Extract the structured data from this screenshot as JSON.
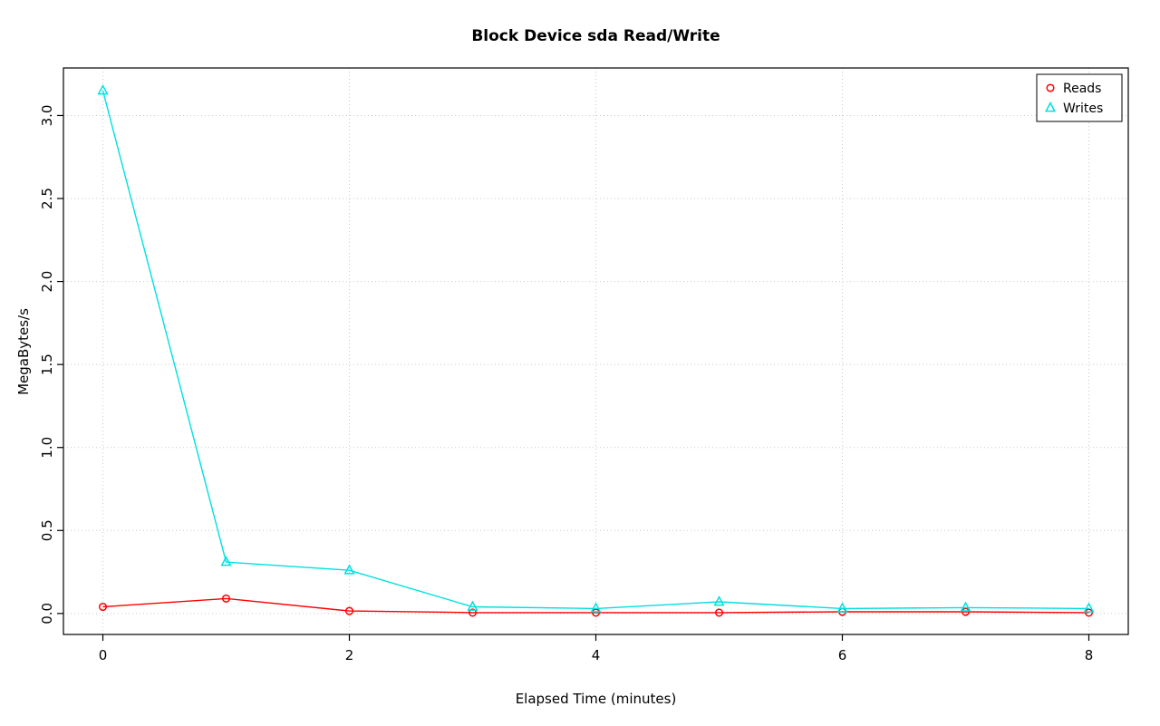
{
  "chart_data": {
    "type": "line",
    "title": "Block Device sda Read/Write",
    "xlabel": "Elapsed Time (minutes)",
    "ylabel": "MegaBytes/s",
    "x": [
      0,
      1,
      2,
      3,
      4,
      5,
      6,
      7,
      8
    ],
    "series": [
      {
        "name": "Reads",
        "color": "#FF0000",
        "marker": "circle",
        "values": [
          0.04,
          0.09,
          0.015,
          0.005,
          0.005,
          0.005,
          0.01,
          0.01,
          0.005
        ]
      },
      {
        "name": "Writes",
        "color": "#00E0E0",
        "marker": "triangle",
        "values": [
          3.15,
          0.31,
          0.26,
          0.04,
          0.03,
          0.07,
          0.03,
          0.035,
          0.03
        ]
      }
    ],
    "xlim": [
      0,
      8
    ],
    "ylim": [
      0,
      3.16
    ],
    "xticks": [
      0,
      2,
      4,
      6,
      8
    ],
    "xtick_labels": [
      "0",
      "2",
      "4",
      "6",
      "8"
    ],
    "yticks": [
      0.0,
      0.5,
      1.0,
      1.5,
      2.0,
      2.5,
      3.0
    ],
    "ytick_labels": [
      "0.0",
      "0.5",
      "1.0",
      "1.5",
      "2.0",
      "2.5",
      "3.0"
    ],
    "grid": true,
    "legend_position": "topright",
    "legend_entries": [
      "Reads",
      "Writes"
    ],
    "colors": {
      "grid": "#C9C9C9",
      "axis": "#000000",
      "background": "#FFFFFF"
    }
  }
}
